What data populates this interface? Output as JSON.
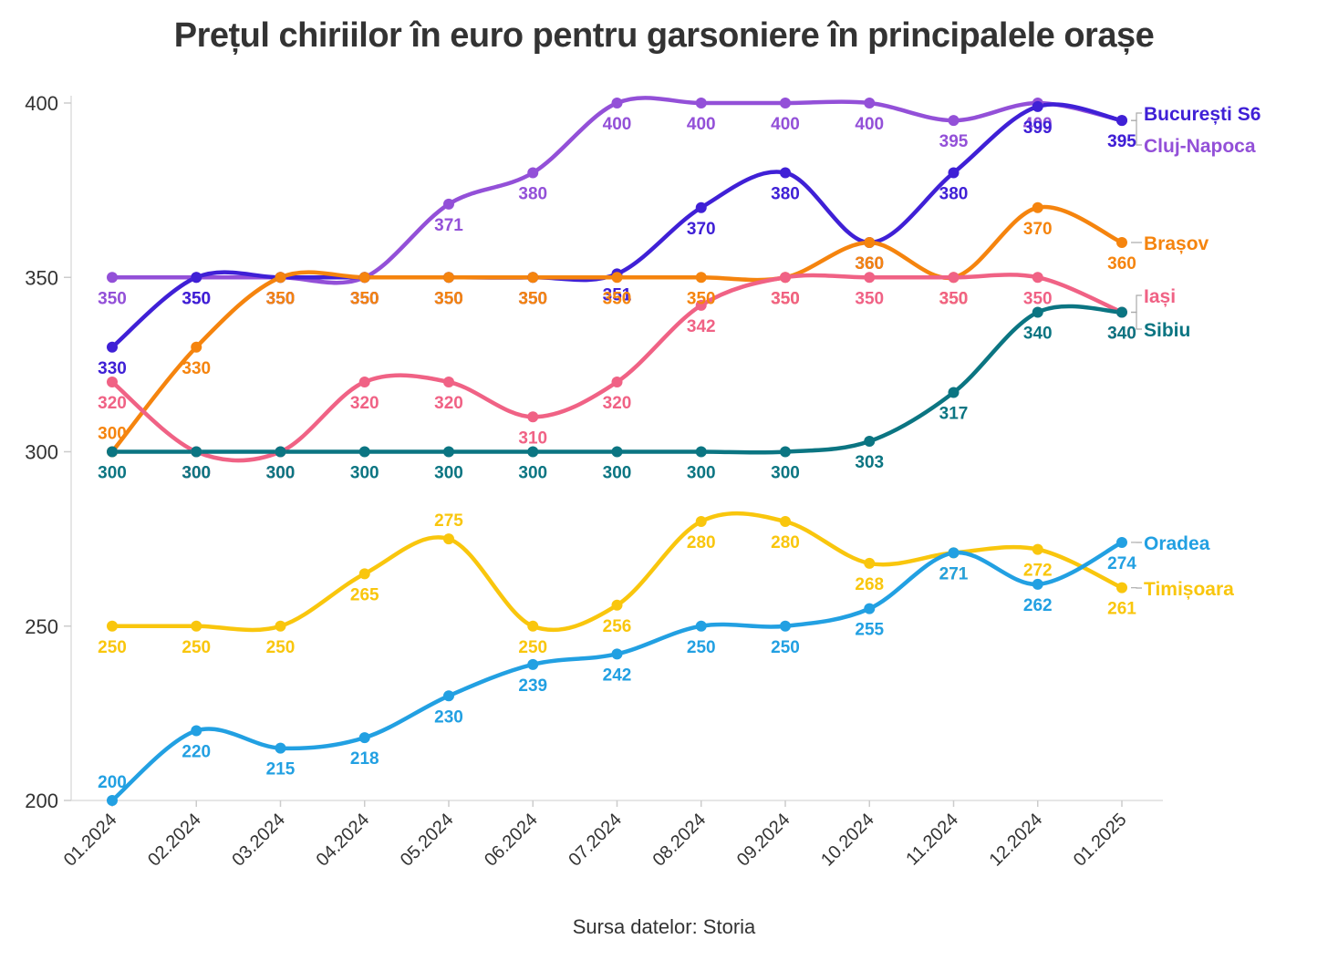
{
  "chart_data": {
    "type": "line",
    "title": "Prețul chiriilor în euro pentru garsoniere în principalele orașe",
    "source": "Sursa datelor: Storia",
    "xlabel": "",
    "ylabel": "",
    "ylim": [
      200,
      400
    ],
    "yticks": [
      200,
      250,
      300,
      350,
      400
    ],
    "grid": false,
    "legend": "right-end labels",
    "categories": [
      "01.2024",
      "02.2024",
      "03.2024",
      "04.2024",
      "05.2024",
      "06.2024",
      "07.2024",
      "08.2024",
      "09.2024",
      "10.2024",
      "11.2024",
      "12.2024",
      "01.2025"
    ],
    "series": [
      {
        "name": "Cluj-Napoca",
        "color": "#9350d8",
        "values": [
          350,
          350,
          350,
          350,
          371,
          380,
          400,
          400,
          400,
          400,
          395,
          400,
          395
        ]
      },
      {
        "name": "București S6",
        "color": "#3f20d6",
        "values": [
          330,
          350,
          350,
          350,
          350,
          350,
          351,
          370,
          380,
          360,
          380,
          399,
          395
        ]
      },
      {
        "name": "Brașov",
        "color": "#f5840e",
        "values": [
          300,
          330,
          350,
          350,
          350,
          350,
          350,
          350,
          350,
          360,
          350,
          370,
          360
        ]
      },
      {
        "name": "Iași",
        "color": "#f06285",
        "values": [
          320,
          300,
          300,
          320,
          320,
          310,
          320,
          342,
          350,
          350,
          350,
          350,
          340
        ]
      },
      {
        "name": "Sibiu",
        "color": "#0b7582",
        "values": [
          300,
          300,
          300,
          300,
          300,
          300,
          300,
          300,
          300,
          303,
          317,
          340,
          340
        ]
      },
      {
        "name": "Timișoara",
        "color": "#f9c60d",
        "values": [
          250,
          250,
          250,
          265,
          275,
          250,
          256,
          280,
          280,
          268,
          271,
          272,
          261
        ]
      },
      {
        "name": "Oradea",
        "color": "#22a0e2",
        "values": [
          200,
          220,
          215,
          218,
          230,
          239,
          242,
          250,
          250,
          255,
          271,
          262,
          274
        ]
      }
    ]
  }
}
